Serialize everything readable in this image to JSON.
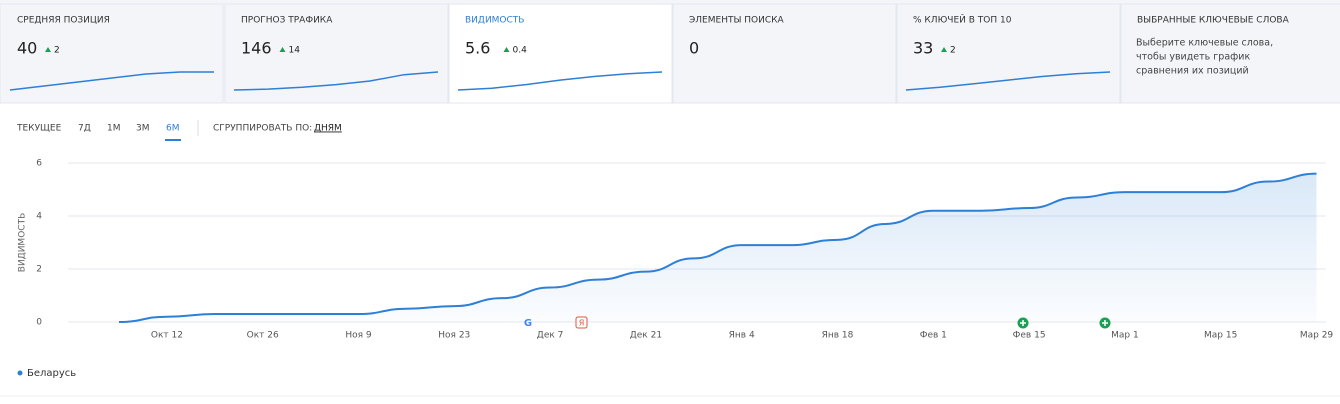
{
  "cards": [
    {
      "title": "СРЕДНЯЯ ПОЗИЦИЯ",
      "value": 40,
      "delta": 2,
      "spark": [
        0,
        0.2,
        0.4,
        0.6,
        0.8,
        0.9,
        0.9
      ]
    },
    {
      "title": "ПРОГНОЗ ТРАФИКА",
      "value": 146,
      "delta": 14,
      "spark": [
        0,
        0.05,
        0.15,
        0.3,
        0.5,
        0.85,
        1
      ]
    },
    {
      "title": "ВИДИМОСТЬ",
      "value": 5.6,
      "delta": 0.4,
      "spark": [
        0,
        0.1,
        0.3,
        0.55,
        0.75,
        0.9,
        1
      ]
    },
    {
      "title": "ЭЛЕМЕНТЫ ПОИСКА",
      "value": 0
    },
    {
      "title": "% КЛЮЧЕЙ В ТОП 10",
      "value": 33,
      "delta": 2,
      "spark": [
        0,
        0.15,
        0.35,
        0.55,
        0.75,
        0.9,
        1
      ]
    },
    {
      "title": "ВЫБРАННЫЕ КЛЮЧЕВЫЕ СЛОВА",
      "text": [
        "Выберите ключевые слова,",
        "чтобы увидеть график",
        "сравнения их позиций"
      ]
    }
  ],
  "tabs": [
    "ТЕКУЩЕЕ",
    "7Д",
    "1М",
    "3М",
    "6М"
  ],
  "group_label": "СГРУППИРОВАТЬ ПО:",
  "group_value": "ДНЯМ",
  "events": [
    "G",
    "Я"
  ],
  "chart_data": {
    "type": "line",
    "y_label": "ВИДИМОСТЬ",
    "categories": [
      null,
      "Окт 12",
      null,
      "Окт 26",
      null,
      "Ноя 9",
      null,
      "Ноя 23",
      null,
      "Дек 7",
      null,
      "Дек 21",
      null,
      "Янв 4",
      null,
      "Янв 18",
      null,
      "Фев 1",
      null,
      "Фев 15",
      null,
      "Мар 1",
      null,
      "Мар 15",
      null,
      "Мар 29"
    ],
    "series": [
      {
        "name": "Беларусь",
        "color": "#2e7fd6",
        "values": [
          0,
          0.2,
          0.3,
          0.3,
          0.3,
          0.3,
          0.5,
          0.6,
          0.9,
          1.3,
          1.6,
          1.9,
          2.4,
          2.9,
          2.9,
          3.1,
          3.7,
          4.2,
          4.2,
          4.3,
          4.7,
          4.9,
          4.9,
          4.9,
          5.3,
          5.6
        ]
      }
    ],
    "ylim": [
      0,
      6
    ],
    "yticks": [
      0,
      2,
      4,
      6
    ],
    "grid": true
  }
}
